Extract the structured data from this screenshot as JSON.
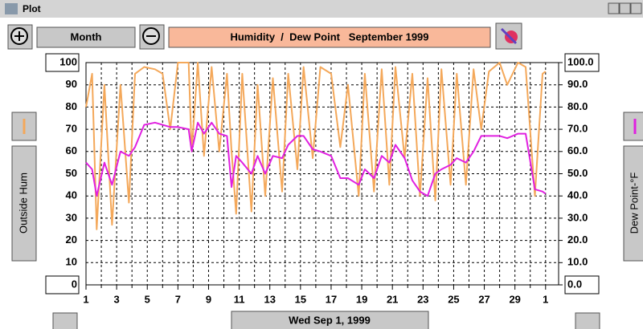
{
  "window": {
    "title": "Plot"
  },
  "toolbar": {
    "period": "Month"
  },
  "footer": {
    "date": "Wed Sep 1, 1999"
  },
  "chart_data": {
    "type": "line",
    "title": "Humidity  /  Dew Point   September 1999",
    "x": [
      1,
      1.4,
      1.7,
      2.2,
      2.7,
      3.25,
      3.8,
      4.2,
      4.8,
      5.5,
      6,
      6.5,
      7,
      7.7,
      7.9,
      8.3,
      8.7,
      9.2,
      9.7,
      10.2,
      10.5,
      10.8,
      11.2,
      11.8,
      12.2,
      12.7,
      13.2,
      13.8,
      14.2,
      14.8,
      15.2,
      15.8,
      16.3,
      17,
      17.6,
      18.1,
      18.8,
      19.2,
      19.8,
      20.3,
      20.8,
      21.2,
      21.8,
      22.3,
      22.8,
      23.3,
      23.8,
      24.2,
      24.8,
      25.2,
      25.8,
      26.3,
      26.8,
      27.3,
      28,
      28.5,
      29.2,
      29.7,
      30.3,
      30.8,
      31
    ],
    "series": [
      {
        "name": "Outside Hum",
        "color": "#f4a85a",
        "values": [
          80,
          95,
          25,
          90,
          27,
          90,
          37,
          95,
          98,
          97,
          95,
          70,
          100,
          100,
          60,
          100,
          58,
          98,
          60,
          95,
          60,
          32,
          95,
          33,
          90,
          40,
          93,
          42,
          95,
          52,
          98,
          57,
          98,
          95,
          62,
          90,
          40,
          95,
          42,
          97,
          45,
          98,
          57,
          95,
          40,
          93,
          38,
          97,
          45,
          95,
          45,
          97,
          70,
          96,
          100,
          90,
          100,
          98,
          40,
          95,
          96
        ]
      },
      {
        "name": "Dew Point-°F",
        "color": "#e020e0",
        "axis": "y2",
        "values": [
          55,
          52,
          40,
          55,
          45,
          60,
          58,
          62,
          72,
          73,
          72,
          71,
          71,
          70,
          60,
          73,
          68,
          73,
          68,
          67,
          44,
          58,
          55,
          50,
          58,
          50,
          58,
          57,
          63,
          67,
          67,
          61,
          60,
          58,
          48,
          48,
          45,
          52,
          48,
          58,
          55,
          63,
          57,
          47,
          42,
          40,
          50,
          52,
          54,
          57,
          55,
          60,
          67,
          67,
          67,
          66,
          68,
          68,
          43,
          42,
          41
        ]
      }
    ],
    "xlim": [
      1,
      31.85
    ],
    "xticks": [
      1,
      3,
      5,
      7,
      9,
      11,
      13,
      15,
      17,
      19,
      21,
      23,
      25,
      27,
      29,
      {
        "value": 31,
        "label": "1"
      }
    ],
    "ylim": [
      0,
      100
    ],
    "yticks": [
      0,
      10,
      20,
      30,
      40,
      50,
      60,
      70,
      80,
      90,
      100
    ],
    "y2lim": [
      0,
      100
    ],
    "y2ticks": [
      {
        "value": 0,
        "label": "0.0"
      },
      {
        "value": 10,
        "label": "10.0"
      },
      {
        "value": 20,
        "label": "20.0"
      },
      {
        "value": 30,
        "label": "30.0"
      },
      {
        "value": 40,
        "label": "40.0"
      },
      {
        "value": 50,
        "label": "50.0"
      },
      {
        "value": 60,
        "label": "60.0"
      },
      {
        "value": 70,
        "label": "70.0"
      },
      {
        "value": 80,
        "label": "80.0"
      },
      {
        "value": 90,
        "label": "90.0"
      },
      {
        "value": 100,
        "label": "100.0"
      }
    ],
    "grid": true
  }
}
